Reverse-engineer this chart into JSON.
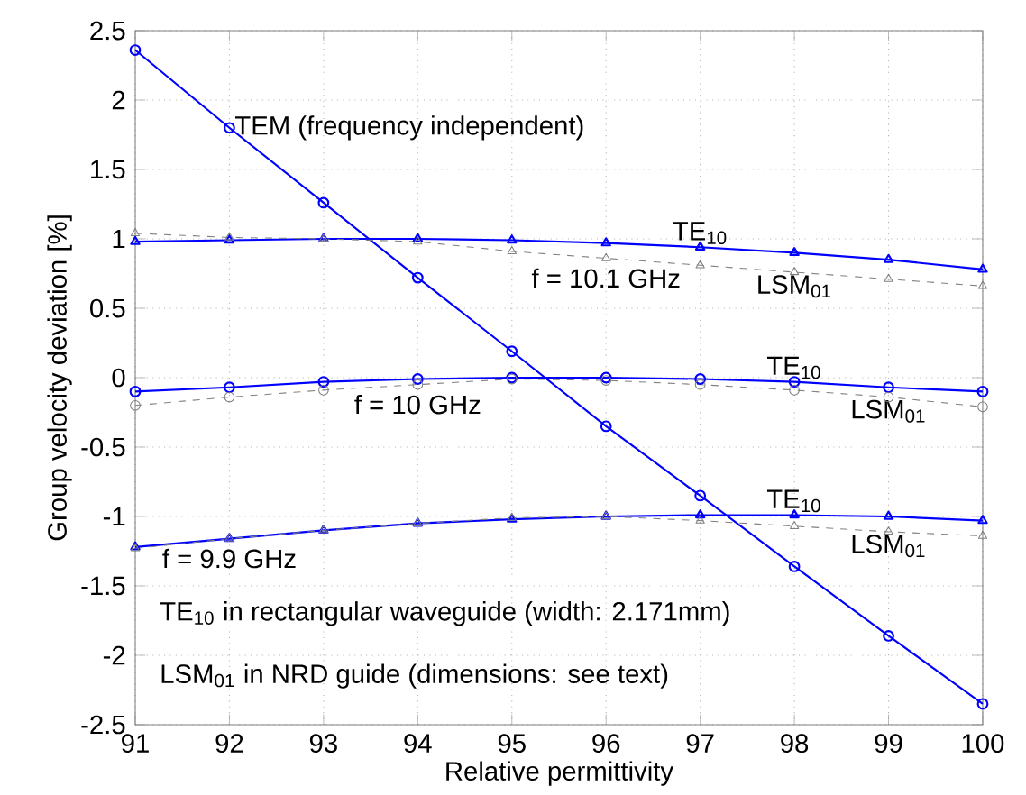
{
  "chart_data": {
    "type": "line",
    "xlabel": "Relative permittivity",
    "ylabel": "Group velocity deviation [%]",
    "x": [
      91,
      92,
      93,
      94,
      95,
      96,
      97,
      98,
      99,
      100
    ],
    "series": [
      {
        "name": "TEM (frequency independent)",
        "color": "#0000ff",
        "marker": "circle",
        "line_style": "solid",
        "values": [
          2.36,
          1.8,
          1.26,
          0.72,
          0.19,
          -0.35,
          -0.85,
          -1.36,
          -1.86,
          -2.35
        ]
      },
      {
        "name": "TE$_{10}$",
        "color": "#0000ff",
        "marker": "triangle",
        "line_style": "solid",
        "values": [
          0.98,
          0.99,
          1.0,
          1.0,
          0.99,
          0.97,
          0.94,
          0.9,
          0.85,
          0.78
        ]
      },
      {
        "name": "LSM$_{01}$",
        "color": "#808080",
        "marker": "triangle",
        "line_style": "dashed",
        "values": [
          1.04,
          1.01,
          1.0,
          0.98,
          0.91,
          0.86,
          0.81,
          0.76,
          0.71,
          0.66
        ]
      },
      {
        "name": "TE$_{10}$",
        "color": "#0000ff",
        "marker": "circle",
        "line_style": "solid",
        "values": [
          -0.1,
          -0.07,
          -0.03,
          -0.01,
          0.0,
          0.0,
          -0.01,
          -0.03,
          -0.07,
          -0.1
        ]
      },
      {
        "name": "LSM$_{01}$",
        "color": "#808080",
        "marker": "circle",
        "line_style": "dashed",
        "values": [
          -0.2,
          -0.14,
          -0.09,
          -0.05,
          -0.01,
          -0.02,
          -0.05,
          -0.09,
          -0.14,
          -0.21
        ]
      },
      {
        "name": "TE$_{10}$",
        "color": "#0000ff",
        "marker": "triangle",
        "line_style": "solid",
        "values": [
          -1.22,
          -1.16,
          -1.1,
          -1.05,
          -1.02,
          -1.0,
          -0.99,
          -0.99,
          -1.0,
          -1.03
        ]
      },
      {
        "name": "LSM$_{01}$",
        "color": "#808080",
        "marker": "triangle",
        "line_style": "dashed",
        "values": [
          -1.23,
          -1.16,
          -1.1,
          -1.05,
          -1.01,
          -1.0,
          -1.03,
          -1.07,
          -1.11,
          -1.14
        ]
      }
    ],
    "annotations": [
      {
        "text": "f = 10.1 GHz",
        "x": 96,
        "y": 0.86
      },
      {
        "text": "f = 10 GHz",
        "x": 94,
        "y": -0.05
      },
      {
        "text": "f = 9.9 GHz",
        "x": 92,
        "y": -1.16
      },
      "TE$_{10}$ in rectangular waveguide (width: 2.171mm)",
      "LSM$_{01}$ in NRD guide (dimensions: see text)"
    ],
    "xlim": [
      91,
      100
    ],
    "ylim": [
      -2.5,
      2.5
    ],
    "xticks": [
      91,
      92,
      93,
      94,
      95,
      96,
      97,
      98,
      99,
      100
    ],
    "yticks": [
      -2.5,
      -2,
      -1.5,
      -1,
      -0.5,
      0,
      0.5,
      1,
      1.5,
      2,
      2.5
    ],
    "grid": true
  }
}
